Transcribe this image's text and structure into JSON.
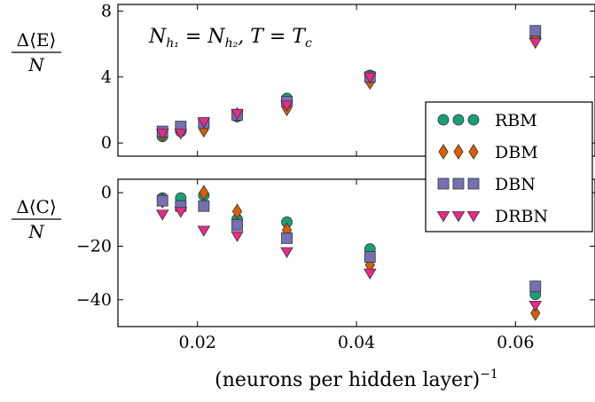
{
  "chart_data": [
    {
      "type": "scatter",
      "panel": "top",
      "ylabel": "Δ⟨E⟩ / N",
      "xlim": [
        0.01,
        0.07
      ],
      "ylim": [
        -0.8,
        8.4
      ],
      "yticks": [
        0,
        4,
        8
      ],
      "grid": false,
      "annotation": "N_h1 = N_h2, T = T_c",
      "series": [
        {
          "name": "RBM",
          "marker": "circle",
          "color": "#1b9e77",
          "points": [
            [
              0.0156,
              0.4
            ],
            [
              0.0179,
              0.7
            ],
            [
              0.0208,
              1.1
            ],
            [
              0.025,
              1.6
            ],
            [
              0.03125,
              2.7
            ],
            [
              0.0417,
              4.1
            ],
            [
              0.0625,
              6.4
            ]
          ]
        },
        {
          "name": "DBM",
          "marker": "diamond",
          "color": "#d95f02",
          "points": [
            [
              0.0156,
              0.5
            ],
            [
              0.0179,
              0.8
            ],
            [
              0.0208,
              0.8
            ],
            [
              0.025,
              1.7
            ],
            [
              0.03125,
              2.1
            ],
            [
              0.0417,
              3.7
            ],
            [
              0.0625,
              6.3
            ]
          ]
        },
        {
          "name": "DBN",
          "marker": "square",
          "color": "#7570b3",
          "points": [
            [
              0.0156,
              0.7
            ],
            [
              0.0179,
              1.0
            ],
            [
              0.0208,
              1.2
            ],
            [
              0.025,
              1.7
            ],
            [
              0.03125,
              2.5
            ],
            [
              0.0417,
              4.0
            ],
            [
              0.0625,
              6.8
            ]
          ]
        },
        {
          "name": "DRBN",
          "marker": "triangle-down",
          "color": "#e7298a",
          "points": [
            [
              0.0156,
              0.6
            ],
            [
              0.0179,
              0.6
            ],
            [
              0.0208,
              1.3
            ],
            [
              0.025,
              1.8
            ],
            [
              0.03125,
              2.3
            ],
            [
              0.0417,
              4.0
            ],
            [
              0.0625,
              6.1
            ]
          ]
        }
      ]
    },
    {
      "type": "scatter",
      "panel": "bottom",
      "xlabel": "(neurons per hidden layer)⁻¹",
      "ylabel": "Δ⟨C⟩ / N",
      "xlim": [
        0.01,
        0.07
      ],
      "ylim": [
        -50,
        5
      ],
      "xticks": [
        "0.02",
        "0.04",
        "0.06"
      ],
      "yticks": [
        0,
        -20,
        -40
      ],
      "grid": false,
      "legend": "right",
      "series": [
        {
          "name": "RBM",
          "marker": "circle",
          "color": "#1b9e77",
          "points": [
            [
              0.0156,
              -2
            ],
            [
              0.0179,
              -2
            ],
            [
              0.0208,
              -1
            ],
            [
              0.025,
              -10
            ],
            [
              0.03125,
              -11
            ],
            [
              0.0417,
              -21
            ],
            [
              0.0625,
              -38
            ]
          ]
        },
        {
          "name": "DBM",
          "marker": "diamond",
          "color": "#d95f02",
          "points": [
            [
              0.0156,
              -3
            ],
            [
              0.0179,
              -6
            ],
            [
              0.0208,
              0
            ],
            [
              0.025,
              -7
            ],
            [
              0.03125,
              -14
            ],
            [
              0.0417,
              -27
            ],
            [
              0.0625,
              -45
            ]
          ]
        },
        {
          "name": "DBN",
          "marker": "square",
          "color": "#7570b3",
          "points": [
            [
              0.0156,
              -3
            ],
            [
              0.0179,
              -5
            ],
            [
              0.0208,
              -5
            ],
            [
              0.025,
              -12
            ],
            [
              0.03125,
              -17
            ],
            [
              0.0417,
              -24
            ],
            [
              0.0625,
              -35
            ]
          ]
        },
        {
          "name": "DRBN",
          "marker": "triangle-down",
          "color": "#e7298a",
          "points": [
            [
              0.0156,
              -8
            ],
            [
              0.0179,
              -7
            ],
            [
              0.0208,
              -14
            ],
            [
              0.025,
              -16
            ],
            [
              0.03125,
              -22
            ],
            [
              0.0417,
              -30
            ],
            [
              0.0625,
              -42
            ]
          ]
        }
      ]
    }
  ],
  "labels": {
    "top_ylabel_num": "Δ⟨E⟩",
    "top_ylabel_den": "N",
    "bottom_ylabel_num": "Δ⟨C⟩",
    "bottom_ylabel_den": "N",
    "xlabel": "(neurons per hidden layer)",
    "xlabel_sup": "−1",
    "annotation": "N",
    "annotation_sub1": "h₁",
    "annotation_mid": " = N",
    "annotation_sub2": "h₂",
    "annotation_tail": ",  T = T",
    "annotation_sub3": "c"
  },
  "legend": {
    "items": [
      {
        "name": "RBM",
        "marker": "circle",
        "color": "#1b9e77"
      },
      {
        "name": "DBM",
        "marker": "diamond",
        "color": "#d95f02"
      },
      {
        "name": "DBN",
        "marker": "square",
        "color": "#7570b3"
      },
      {
        "name": "DRBN",
        "marker": "triangle-down",
        "color": "#e7298a"
      }
    ]
  }
}
